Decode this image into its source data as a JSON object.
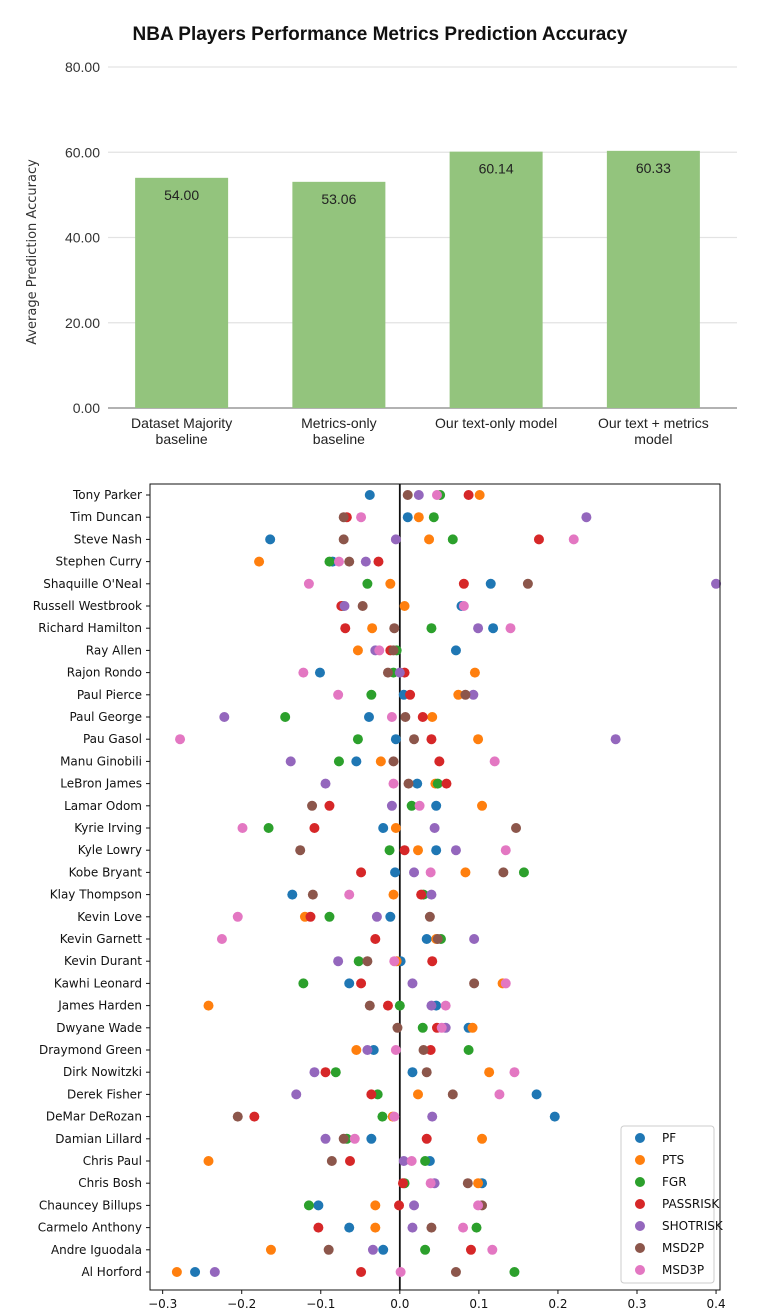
{
  "chart_data": [
    {
      "type": "bar",
      "title": "NBA Players Performance Metrics Prediction Accuracy",
      "ylabel": "Average Prediction Accuracy",
      "xlabel": "",
      "ylim": [
        0,
        80
      ],
      "yticks": [
        "0.00",
        "20.00",
        "40.00",
        "60.00",
        "80.00"
      ],
      "grid": true,
      "bar_color": "#93c47d",
      "categories": [
        [
          "Dataset Majority",
          "baseline"
        ],
        [
          "Metrics-only",
          "baseline"
        ],
        [
          "Our text-only model"
        ],
        [
          "Our text + metrics",
          "model"
        ]
      ],
      "values": [
        54.0,
        53.06,
        60.14,
        60.33
      ],
      "data_labels": [
        "54.00",
        "53.06",
        "60.14",
        "60.33"
      ]
    },
    {
      "type": "scatter",
      "xlim": [
        -0.316,
        0.405
      ],
      "xticks": [
        "−0.3",
        "−0.2",
        "−0.1",
        "0.0",
        "0.1",
        "0.2",
        "0.3",
        "0.4"
      ],
      "xtick_values": [
        -0.3,
        -0.2,
        -0.1,
        0.0,
        0.1,
        0.2,
        0.3,
        0.4
      ],
      "reference_line_x": 0,
      "legend": "lower-right",
      "players": [
        "Tony Parker",
        "Tim Duncan",
        "Steve Nash",
        "Stephen Curry",
        "Shaquille O'Neal",
        "Russell Westbrook",
        "Richard Hamilton",
        "Ray Allen",
        "Rajon Rondo",
        "Paul Pierce",
        "Paul George",
        "Pau Gasol",
        "Manu Ginobili",
        "LeBron James",
        "Lamar Odom",
        "Kyrie Irving",
        "Kyle Lowry",
        "Kobe Bryant",
        "Klay Thompson",
        "Kevin Love",
        "Kevin Garnett",
        "Kevin Durant",
        "Kawhi Leonard",
        "James Harden",
        "Dwyane Wade",
        "Draymond Green",
        "Dirk Nowitzki",
        "Derek Fisher",
        "DeMar DeRozan",
        "Damian Lillard",
        "Chris Paul",
        "Chris Bosh",
        "Chauncey Billups",
        "Carmelo Anthony",
        "Andre Iguodala",
        "Al Horford"
      ],
      "series": [
        {
          "name": "PF",
          "color": "#1f77b4",
          "values": [
            -0.038,
            0.01,
            -0.164,
            -0.085,
            0.115,
            0.078,
            0.118,
            0.071,
            -0.101,
            0.005,
            -0.039,
            -0.005,
            -0.055,
            0.022,
            0.046,
            -0.021,
            0.046,
            -0.006,
            -0.136,
            -0.012,
            0.034,
            0.001,
            -0.064,
            0.046,
            0.087,
            -0.033,
            0.016,
            0.173,
            0.196,
            -0.036,
            0.038,
            0.104,
            -0.103,
            -0.064,
            -0.021,
            -0.259
          ]
        },
        {
          "name": "PTS",
          "color": "#ff7f0e",
          "values": [
            0.101,
            0.024,
            0.037,
            -0.178,
            -0.012,
            0.006,
            -0.035,
            -0.053,
            0.095,
            0.074,
            0.041,
            0.099,
            -0.024,
            0.045,
            0.104,
            -0.005,
            0.023,
            0.083,
            -0.008,
            -0.12,
            0.046,
            -0.004,
            0.13,
            -0.242,
            0.092,
            -0.055,
            0.113,
            0.023,
            -0.009,
            0.104,
            -0.242,
            0.099,
            -0.031,
            -0.031,
            -0.163,
            -0.282
          ]
        },
        {
          "name": "FGR",
          "color": "#2ca02c",
          "values": [
            0.051,
            0.043,
            0.067,
            -0.089,
            -0.041,
            -0.072,
            0.04,
            -0.004,
            -0.008,
            -0.036,
            -0.145,
            -0.053,
            -0.077,
            0.048,
            0.015,
            -0.166,
            -0.013,
            0.157,
            0.03,
            -0.089,
            0.052,
            -0.052,
            -0.122,
            0.0,
            0.029,
            0.087,
            -0.081,
            -0.028,
            -0.022,
            -0.067,
            0.032,
            0.006,
            -0.115,
            0.097,
            0.032,
            0.145
          ]
        },
        {
          "name": "PASSRISK",
          "color": "#d62728",
          "values": [
            0.087,
            -0.067,
            0.176,
            -0.027,
            0.081,
            -0.074,
            -0.069,
            -0.012,
            0.006,
            0.013,
            0.029,
            0.04,
            0.05,
            0.059,
            -0.089,
            -0.108,
            0.006,
            -0.049,
            0.027,
            -0.113,
            -0.031,
            0.041,
            -0.049,
            -0.015,
            0.047,
            0.039,
            -0.094,
            -0.036,
            -0.184,
            0.034,
            -0.063,
            0.004,
            -0.001,
            -0.103,
            0.09,
            -0.049
          ]
        },
        {
          "name": "SHOTRISK",
          "color": "#9467bd",
          "values": [
            0.024,
            0.236,
            -0.005,
            -0.043,
            0.4,
            -0.07,
            0.099,
            -0.031,
            0.0,
            0.093,
            -0.222,
            0.273,
            -0.138,
            -0.094,
            -0.01,
            0.044,
            0.071,
            0.018,
            0.04,
            -0.029,
            0.094,
            -0.078,
            0.016,
            0.04,
            0.058,
            -0.041,
            -0.108,
            -0.131,
            0.041,
            -0.094,
            0.005,
            0.044,
            0.018,
            0.016,
            -0.034,
            -0.234
          ]
        },
        {
          "name": "MSD2P",
          "color": "#8c564b",
          "values": [
            0.01,
            -0.071,
            -0.071,
            -0.064,
            0.162,
            -0.047,
            -0.007,
            -0.008,
            -0.015,
            0.083,
            0.007,
            0.018,
            -0.008,
            0.011,
            -0.111,
            0.147,
            -0.126,
            0.131,
            -0.11,
            0.038,
            0.048,
            -0.041,
            0.094,
            -0.038,
            -0.003,
            0.03,
            0.034,
            0.067,
            -0.205,
            -0.071,
            -0.086,
            0.086,
            0.104,
            0.04,
            -0.09,
            0.071
          ]
        },
        {
          "name": "MSD3P",
          "color": "#e377c2",
          "values": [
            0.047,
            -0.049,
            0.22,
            -0.077,
            -0.115,
            0.081,
            0.14,
            -0.026,
            -0.122,
            -0.078,
            -0.01,
            -0.278,
            0.12,
            -0.008,
            0.025,
            -0.199,
            0.134,
            0.039,
            -0.064,
            -0.205,
            -0.225,
            -0.007,
            0.134,
            0.058,
            0.053,
            -0.005,
            0.145,
            0.126,
            -0.007,
            -0.057,
            0.015,
            0.039,
            0.099,
            0.08,
            0.117,
            0.001
          ]
        }
      ]
    }
  ]
}
